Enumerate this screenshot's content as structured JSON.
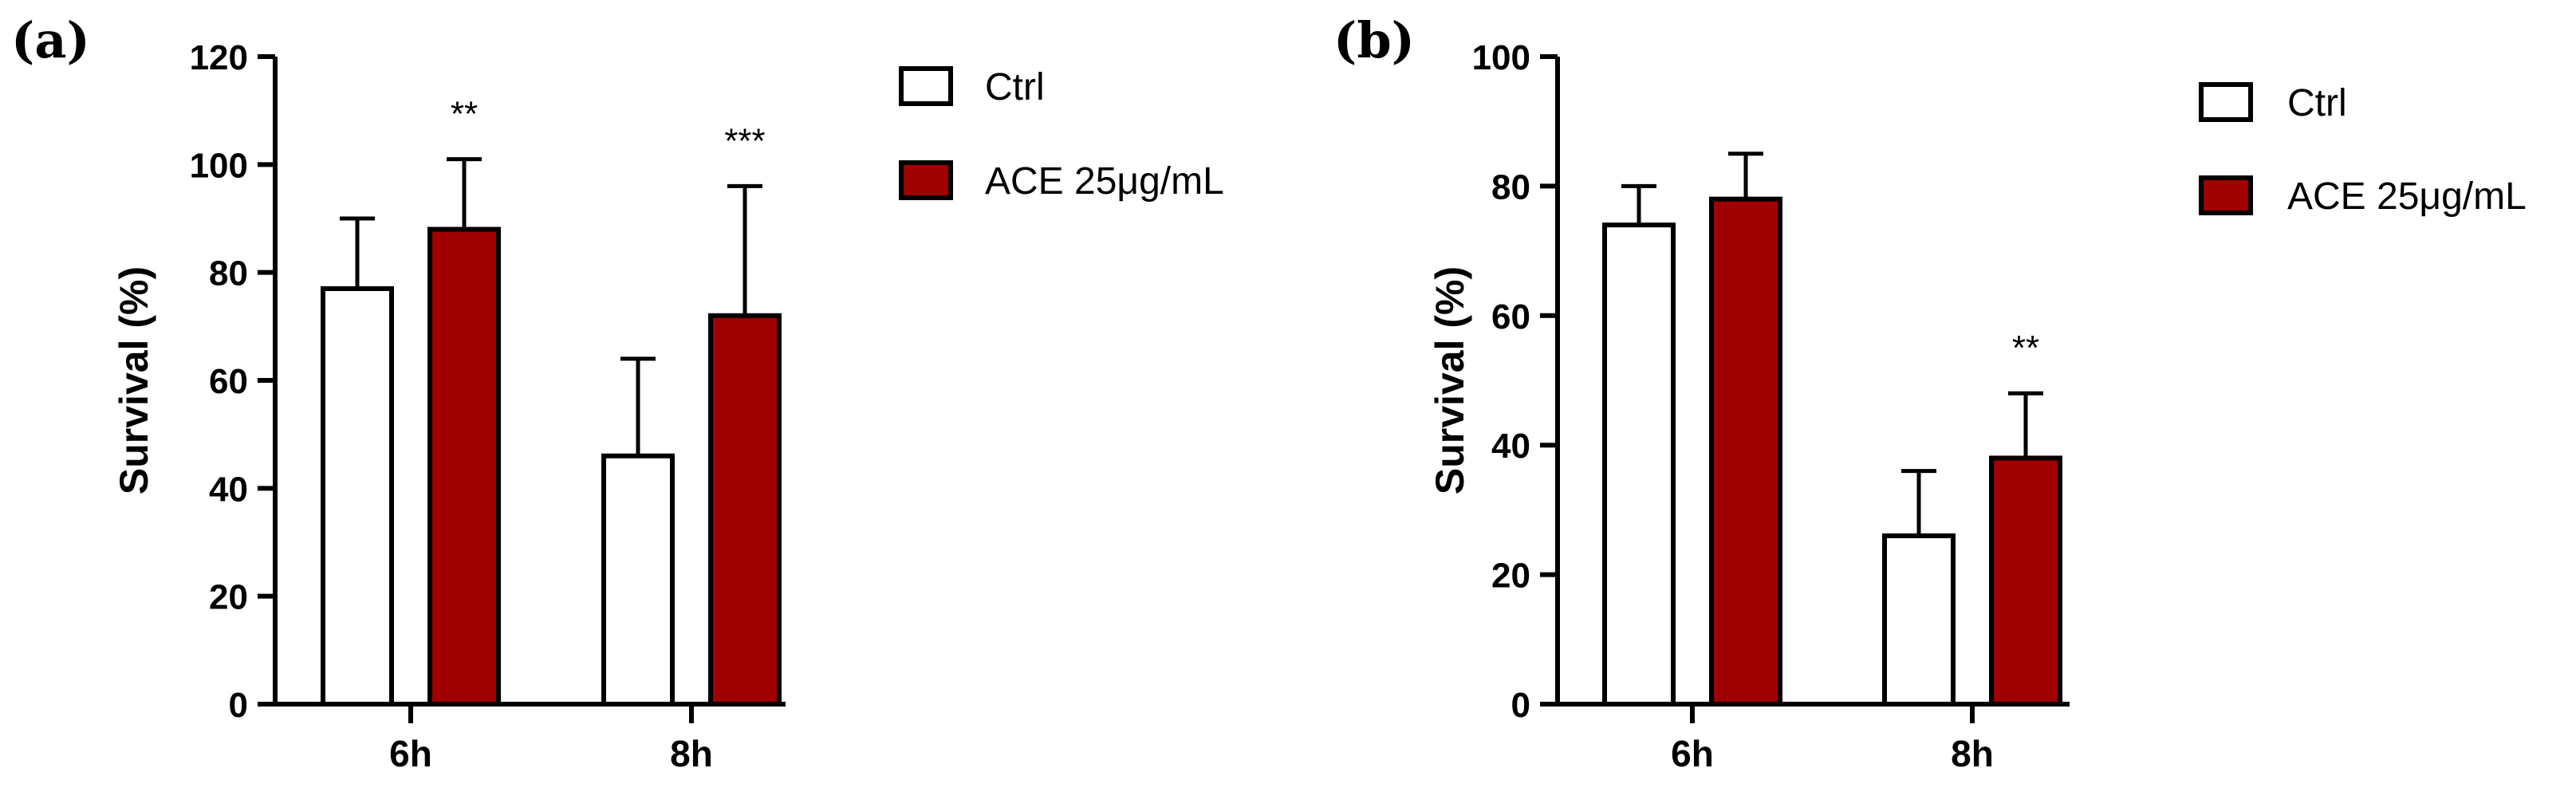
{
  "chart_data": [
    {
      "type": "bar",
      "panel_label": "(a)",
      "ylabel": "Survival (%)",
      "ylim": [
        0,
        120
      ],
      "yticks": [
        "0",
        "20",
        "40",
        "60",
        "80",
        "100",
        "120"
      ],
      "categories": [
        "6h",
        "8h"
      ],
      "series": [
        {
          "name": "Ctrl",
          "color": "#ffffff",
          "values": [
            77,
            46
          ],
          "errors": [
            13,
            18
          ]
        },
        {
          "name": "ACE 25μg/mL",
          "color": "#a00000",
          "values": [
            88,
            72
          ],
          "errors": [
            13,
            24
          ]
        }
      ],
      "annotations": [
        {
          "category": "6h",
          "series": "ACE 25μg/mL",
          "text": "**"
        },
        {
          "category": "8h",
          "series": "ACE 25μg/mL",
          "text": "***"
        }
      ],
      "legend": "top-right"
    },
    {
      "type": "bar",
      "panel_label": "(b)",
      "ylabel": "Survival (%)",
      "ylim": [
        0,
        100
      ],
      "yticks": [
        "0",
        "20",
        "40",
        "60",
        "80",
        "100"
      ],
      "categories": [
        "6h",
        "8h"
      ],
      "series": [
        {
          "name": "Ctrl",
          "color": "#ffffff",
          "values": [
            74,
            26
          ],
          "errors": [
            6,
            10
          ]
        },
        {
          "name": "ACE 25μg/mL",
          "color": "#a00000",
          "values": [
            78,
            38
          ],
          "errors": [
            7,
            10
          ]
        }
      ],
      "annotations": [
        {
          "category": "8h",
          "series": "ACE 25μg/mL",
          "text": "**"
        }
      ],
      "legend": "top-right"
    }
  ]
}
